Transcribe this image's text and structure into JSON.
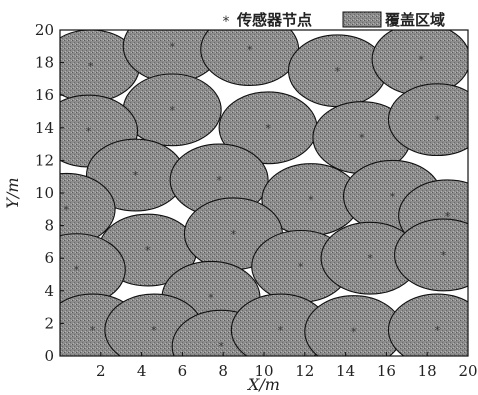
{
  "chart_data": {
    "type": "scatter",
    "xlabel": "X/m",
    "ylabel": "Y/m",
    "xlim": [
      0,
      20
    ],
    "ylim": [
      0,
      20
    ],
    "xticks": [
      2,
      4,
      6,
      8,
      10,
      12,
      14,
      16,
      18,
      20
    ],
    "yticks": [
      0,
      2,
      4,
      6,
      8,
      10,
      12,
      14,
      16,
      18,
      20
    ],
    "grid": false,
    "legend": {
      "placement": "top-right",
      "entries": [
        {
          "label": "传感器节点",
          "marker": "*"
        },
        {
          "label": "覆盖区域",
          "swatch": "hatched-gray"
        }
      ]
    },
    "sensing_radius_x": 2.4,
    "sensing_radius_y": 2.2,
    "nodes": [
      {
        "x": 1.5,
        "y": 17.8
      },
      {
        "x": 5.5,
        "y": 19.0
      },
      {
        "x": 9.3,
        "y": 18.8
      },
      {
        "x": 13.6,
        "y": 17.5
      },
      {
        "x": 17.7,
        "y": 18.2
      },
      {
        "x": 5.5,
        "y": 15.1
      },
      {
        "x": 1.4,
        "y": 13.8
      },
      {
        "x": 10.2,
        "y": 14.0
      },
      {
        "x": 14.8,
        "y": 13.4
      },
      {
        "x": 18.5,
        "y": 14.5
      },
      {
        "x": 3.7,
        "y": 11.1
      },
      {
        "x": 7.8,
        "y": 10.8
      },
      {
        "x": 12.3,
        "y": 9.6
      },
      {
        "x": 16.3,
        "y": 9.8
      },
      {
        "x": 0.3,
        "y": 9.0
      },
      {
        "x": 19.0,
        "y": 8.6
      },
      {
        "x": 4.3,
        "y": 6.5
      },
      {
        "x": 8.5,
        "y": 7.5
      },
      {
        "x": 11.8,
        "y": 5.5
      },
      {
        "x": 15.2,
        "y": 6.0
      },
      {
        "x": 18.8,
        "y": 6.2
      },
      {
        "x": 0.8,
        "y": 5.3
      },
      {
        "x": 7.4,
        "y": 3.6
      },
      {
        "x": 1.6,
        "y": 1.6
      },
      {
        "x": 4.6,
        "y": 1.6
      },
      {
        "x": 7.9,
        "y": 0.6
      },
      {
        "x": 10.8,
        "y": 1.6
      },
      {
        "x": 14.4,
        "y": 1.5
      },
      {
        "x": 18.5,
        "y": 1.6
      }
    ]
  },
  "colors": {
    "fill_base": "#8c8c8c",
    "fill_speckle": "#5a5a5a",
    "outline": "#111111",
    "node": "#333333"
  }
}
